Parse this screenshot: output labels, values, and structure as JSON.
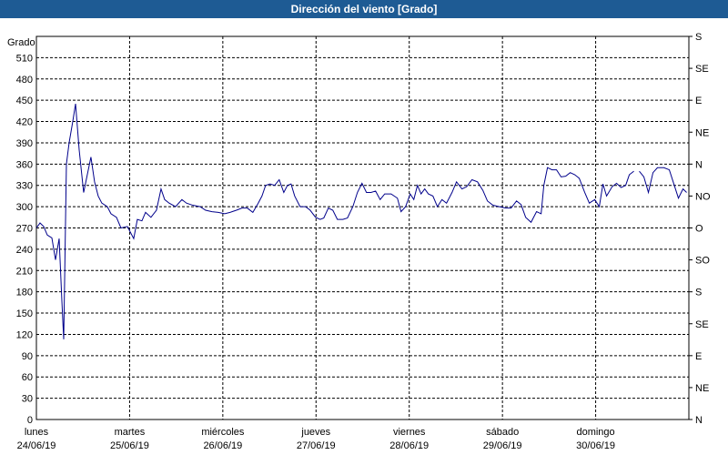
{
  "chart_data": {
    "type": "line",
    "title": "Dirección del viento [Grado]",
    "ylabel": "Grado",
    "color": "#00008b",
    "grid": true,
    "xlim": [
      0,
      7
    ],
    "xticks": [
      {
        "value": 0,
        "label": "lunes",
        "date": "24/06/19"
      },
      {
        "value": 1,
        "label": "martes",
        "date": "25/06/19"
      },
      {
        "value": 2,
        "label": "miércoles",
        "date": "26/06/19"
      },
      {
        "value": 3,
        "label": "jueves",
        "date": "27/06/19"
      },
      {
        "value": 4,
        "label": "viernes",
        "date": "28/06/19"
      },
      {
        "value": 5,
        "label": "sábado",
        "date": "29/06/19"
      },
      {
        "value": 6,
        "label": "domingo",
        "date": "30/06/19"
      }
    ],
    "ylim": [
      0,
      540
    ],
    "yticks": [
      0,
      30,
      60,
      90,
      120,
      150,
      180,
      210,
      240,
      270,
      300,
      330,
      360,
      390,
      420,
      450,
      480,
      510
    ],
    "y2lim": [
      0,
      540
    ],
    "y2ticks": [
      {
        "value": 0,
        "label": "N"
      },
      {
        "value": 45,
        "label": "NE"
      },
      {
        "value": 90,
        "label": "E"
      },
      {
        "value": 135,
        "label": "SE"
      },
      {
        "value": 180,
        "label": "S"
      },
      {
        "value": 225,
        "label": "SO"
      },
      {
        "value": 270,
        "label": "O"
      },
      {
        "value": 315,
        "label": "NO"
      },
      {
        "value": 360,
        "label": "N"
      },
      {
        "value": 405,
        "label": "NE"
      },
      {
        "value": 450,
        "label": "E"
      },
      {
        "value": 495,
        "label": "SE"
      },
      {
        "value": 540,
        "label": "S"
      }
    ],
    "x": [
      0,
      0.039,
      0.078,
      0.117,
      0.166,
      0.205,
      0.244,
      0.273,
      0.293,
      0.322,
      0.351,
      0.39,
      0.42,
      0.459,
      0.507,
      0.546,
      0.585,
      0.624,
      0.663,
      0.702,
      0.761,
      0.8,
      0.859,
      0.907,
      0.976,
      1.044,
      1.083,
      1.132,
      1.171,
      1.229,
      1.288,
      1.337,
      1.376,
      1.424,
      1.493,
      1.561,
      1.61,
      1.678,
      1.756,
      1.815,
      1.883,
      1.951,
      2.02,
      2.078,
      2.146,
      2.205,
      2.263,
      2.322,
      2.38,
      2.42,
      2.459,
      2.507,
      2.556,
      2.605,
      2.654,
      2.693,
      2.732,
      2.771,
      2.829,
      2.888,
      2.937,
      2.995,
      3.044,
      3.083,
      3.132,
      3.18,
      3.229,
      3.288,
      3.337,
      3.395,
      3.444,
      3.493,
      3.541,
      3.59,
      3.639,
      3.688,
      3.737,
      3.805,
      3.873,
      3.912,
      3.961,
      4.01,
      4.049,
      4.088,
      4.127,
      4.166,
      4.205,
      4.254,
      4.302,
      4.351,
      4.4,
      4.459,
      4.507,
      4.566,
      4.615,
      4.673,
      4.732,
      4.79,
      4.839,
      4.898,
      4.966,
      5.034,
      5.093,
      5.151,
      5.2,
      5.249,
      5.307,
      5.366,
      5.415,
      5.444,
      5.483,
      5.532,
      5.58,
      5.629,
      5.678,
      5.727,
      5.776,
      5.824,
      5.883,
      5.932,
      5.99,
      6.039,
      6.078,
      6.117,
      6.176,
      6.224,
      6.273,
      6.322,
      6.361,
      6.41,
      6.44,
      6.468,
      6.517,
      6.566,
      6.615,
      6.663,
      6.732,
      6.79,
      6.839,
      6.888,
      6.937,
      6.976
    ],
    "values": [
      270,
      277,
      272,
      260,
      256,
      225,
      255,
      168,
      113,
      360,
      390,
      420,
      445,
      380,
      320,
      345,
      370,
      335,
      315,
      305,
      300,
      290,
      285,
      270,
      272,
      255,
      282,
      280,
      292,
      285,
      295,
      325,
      310,
      305,
      300,
      310,
      305,
      302,
      300,
      295,
      293,
      292,
      290,
      292,
      295,
      298,
      298,
      292,
      305,
      315,
      330,
      332,
      330,
      338,
      320,
      330,
      332,
      315,
      300,
      300,
      295,
      285,
      282,
      284,
      298,
      295,
      282,
      282,
      284,
      300,
      320,
      333,
      320,
      320,
      322,
      310,
      318,
      318,
      312,
      293,
      300,
      318,
      310,
      330,
      318,
      325,
      318,
      315,
      300,
      310,
      305,
      320,
      335,
      325,
      328,
      338,
      335,
      323,
      308,
      302,
      300,
      298,
      298,
      308,
      303,
      285,
      278,
      293,
      290,
      330,
      355,
      352,
      352,
      342,
      343,
      348,
      345,
      340,
      320,
      305,
      310,
      300,
      332,
      315,
      328,
      333,
      327,
      330,
      345,
      350,
      null,
      350,
      342,
      320,
      348,
      355,
      355,
      352,
      332,
      312,
      325,
      320
    ]
  }
}
